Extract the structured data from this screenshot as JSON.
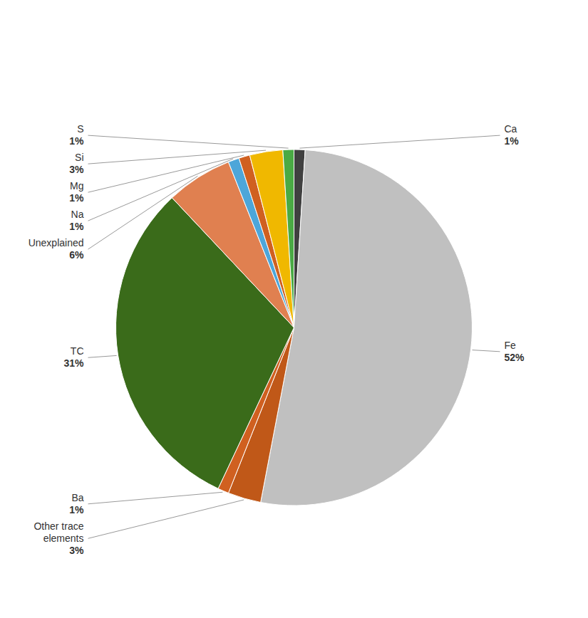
{
  "chart_data": {
    "type": "pie",
    "categories": [
      "Ca",
      "Fe",
      "Other trace elements",
      "Ba",
      "TC",
      "Unexplained",
      "Na",
      "Mg",
      "Si",
      "S"
    ],
    "values": [
      1,
      52,
      3,
      1,
      31,
      6,
      1,
      1,
      3,
      1
    ],
    "value_labels": [
      "1%",
      "52%",
      "3%",
      "1%",
      "31%",
      "6%",
      "1%",
      "1%",
      "3%",
      "1%"
    ],
    "colors": [
      "#404040",
      "#c0c0c0",
      "#c05818",
      "#d06020",
      "#3a6b1a",
      "#e08050",
      "#4da6d9",
      "#d06020",
      "#f0b800",
      "#4aaa44"
    ],
    "data_labels": true
  }
}
